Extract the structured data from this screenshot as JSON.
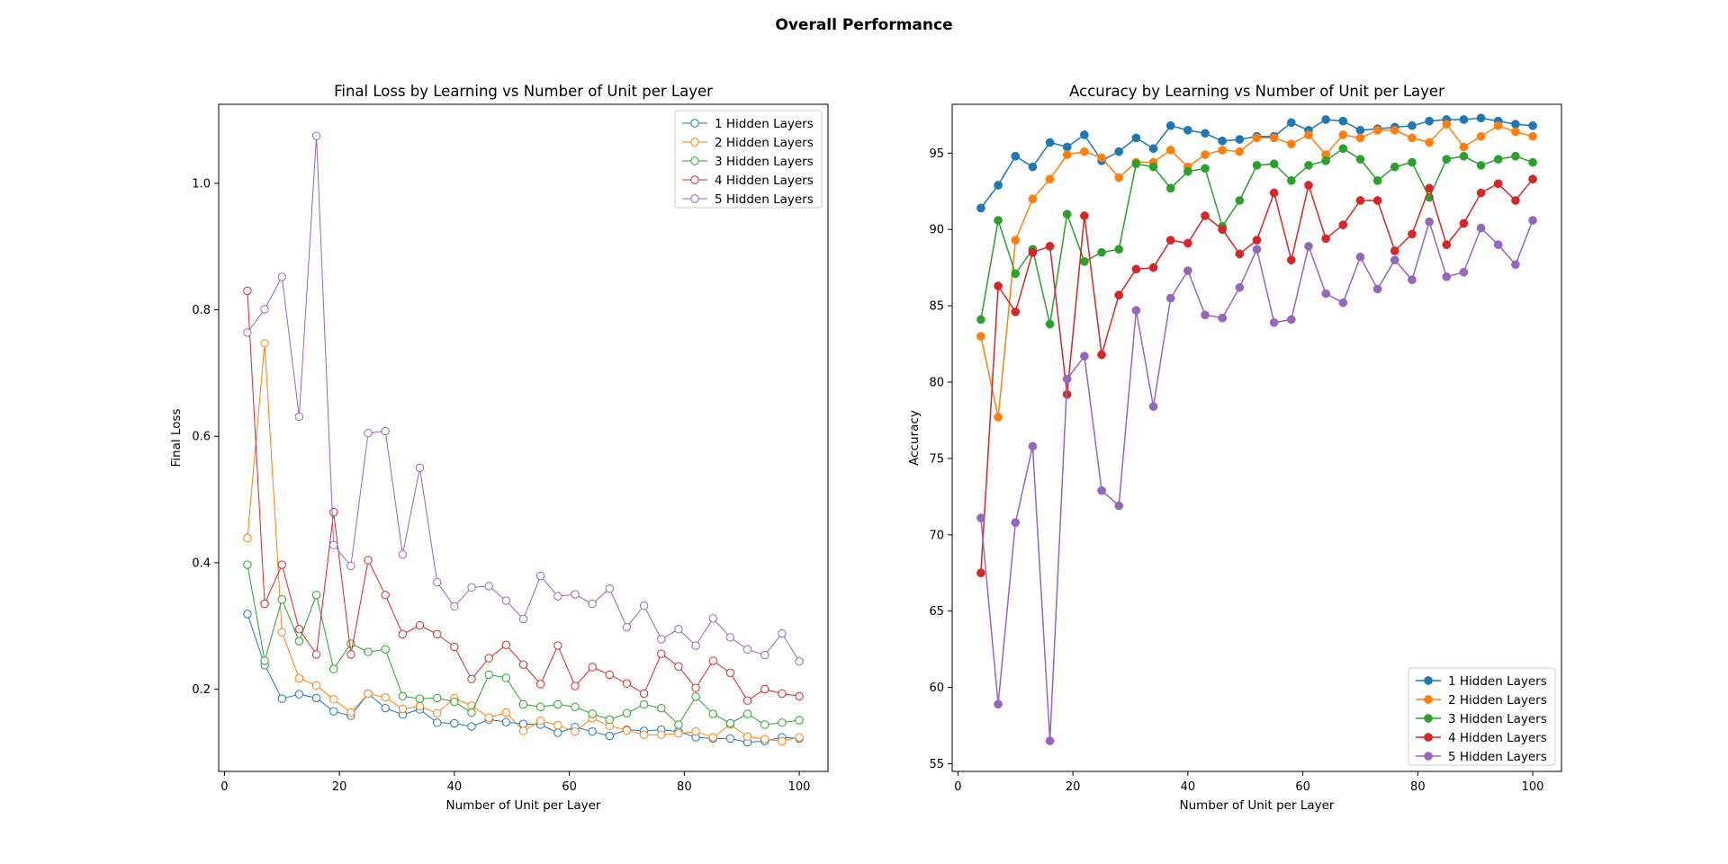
{
  "figure": {
    "title": "Overall Performance"
  },
  "chart_data": [
    {
      "type": "line",
      "title": "Final Loss by Learning vs Number of Unit per Layer",
      "xlabel": "Number of Unit per Layer",
      "ylabel": "Final Loss",
      "xlim": [
        -1,
        105
      ],
      "ylim": [
        0.07,
        1.125
      ],
      "xticks": [
        0,
        20,
        40,
        60,
        80,
        100
      ],
      "yticks": [
        0.2,
        0.4,
        0.6,
        0.8,
        1.0
      ],
      "ytick_format": 1,
      "marker": "hollow",
      "legend": "top-right",
      "grid": false,
      "x": [
        4,
        7,
        10,
        13,
        16,
        19,
        22,
        25,
        28,
        31,
        34,
        37,
        40,
        43,
        46,
        49,
        52,
        55,
        58,
        61,
        64,
        67,
        70,
        73,
        76,
        79,
        82,
        85,
        88,
        91,
        94,
        97,
        100
      ],
      "series": [
        {
          "name": "1 Hidden Layers",
          "color": "#1f77b4",
          "values": [
            0.319,
            0.238,
            0.185,
            0.192,
            0.186,
            0.165,
            0.158,
            0.193,
            0.17,
            0.16,
            0.168,
            0.147,
            0.146,
            0.141,
            0.152,
            0.148,
            0.145,
            0.144,
            0.131,
            0.14,
            0.133,
            0.126,
            0.136,
            0.134,
            0.136,
            0.133,
            0.124,
            0.122,
            0.122,
            0.116,
            0.118,
            0.124,
            0.122
          ]
        },
        {
          "name": "2 Hidden Layers",
          "color": "#ff7f0e",
          "values": [
            0.439,
            0.747,
            0.29,
            0.217,
            0.206,
            0.184,
            0.163,
            0.193,
            0.187,
            0.169,
            0.173,
            0.162,
            0.186,
            0.174,
            0.155,
            0.163,
            0.134,
            0.15,
            0.143,
            0.133,
            0.154,
            0.142,
            0.135,
            0.128,
            0.128,
            0.13,
            0.133,
            0.124,
            0.144,
            0.125,
            0.121,
            0.118,
            0.124
          ]
        },
        {
          "name": "3 Hidden Layers",
          "color": "#2ca02c",
          "values": [
            0.397,
            0.245,
            0.342,
            0.276,
            0.349,
            0.232,
            0.272,
            0.259,
            0.263,
            0.189,
            0.185,
            0.186,
            0.18,
            0.163,
            0.223,
            0.218,
            0.176,
            0.172,
            0.176,
            0.172,
            0.161,
            0.152,
            0.162,
            0.176,
            0.17,
            0.144,
            0.188,
            0.161,
            0.146,
            0.161,
            0.144,
            0.147,
            0.151
          ]
        },
        {
          "name": "4 Hidden Layers",
          "color": "#d62728",
          "values": [
            0.83,
            0.335,
            0.397,
            0.295,
            0.255,
            0.48,
            0.255,
            0.404,
            0.349,
            0.287,
            0.301,
            0.287,
            0.267,
            0.216,
            0.249,
            0.27,
            0.239,
            0.208,
            0.269,
            0.205,
            0.235,
            0.223,
            0.209,
            0.193,
            0.256,
            0.236,
            0.202,
            0.245,
            0.226,
            0.182,
            0.2,
            0.193,
            0.189
          ]
        },
        {
          "name": "5 Hidden Layers",
          "color": "#9467bd",
          "values": [
            0.764,
            0.801,
            0.852,
            0.631,
            1.075,
            0.428,
            0.395,
            0.605,
            0.608,
            0.413,
            0.55,
            0.369,
            0.331,
            0.361,
            0.363,
            0.34,
            0.311,
            0.379,
            0.347,
            0.35,
            0.335,
            0.359,
            0.298,
            0.332,
            0.279,
            0.295,
            0.269,
            0.312,
            0.282,
            0.263,
            0.254,
            0.288,
            0.244
          ]
        }
      ]
    },
    {
      "type": "line",
      "title": "Accuracy by Learning vs Number of Unit per Layer",
      "xlabel": "Number of Unit per Layer",
      "ylabel": "Accuracy",
      "xlim": [
        -1,
        105
      ],
      "ylim": [
        54.5,
        98.2
      ],
      "xticks": [
        0,
        20,
        40,
        60,
        80,
        100
      ],
      "yticks": [
        55,
        60,
        65,
        70,
        75,
        80,
        85,
        90,
        95
      ],
      "ytick_format": 0,
      "marker": "filled",
      "legend": "bottom-right",
      "grid": false,
      "x": [
        4,
        7,
        10,
        13,
        16,
        19,
        22,
        25,
        28,
        31,
        34,
        37,
        40,
        43,
        46,
        49,
        52,
        55,
        58,
        61,
        64,
        67,
        70,
        73,
        76,
        79,
        82,
        85,
        88,
        91,
        94,
        97,
        100
      ],
      "series": [
        {
          "name": "1 Hidden Layers",
          "color": "#1f77b4",
          "values": [
            91.4,
            92.9,
            94.8,
            94.1,
            95.7,
            95.4,
            96.2,
            94.5,
            95.1,
            96.0,
            95.3,
            96.8,
            96.5,
            96.3,
            95.8,
            95.9,
            96.1,
            96.1,
            97.0,
            96.5,
            97.2,
            97.1,
            96.5,
            96.6,
            96.7,
            96.8,
            97.1,
            97.2,
            97.2,
            97.3,
            97.1,
            96.9,
            96.8
          ]
        },
        {
          "name": "2 Hidden Layers",
          "color": "#ff7f0e",
          "values": [
            83.0,
            77.7,
            89.3,
            92.0,
            93.3,
            94.9,
            95.1,
            94.7,
            93.4,
            94.4,
            94.4,
            95.2,
            94.1,
            94.9,
            95.2,
            95.1,
            96.0,
            96.0,
            95.6,
            96.2,
            94.9,
            96.2,
            96.0,
            96.5,
            96.5,
            96.0,
            95.7,
            96.9,
            95.4,
            96.1,
            96.8,
            96.4,
            96.1
          ]
        },
        {
          "name": "3 Hidden Layers",
          "color": "#2ca02c",
          "values": [
            84.1,
            90.6,
            87.1,
            88.7,
            83.8,
            91.0,
            87.9,
            88.5,
            88.7,
            94.3,
            94.1,
            92.7,
            93.8,
            94.0,
            90.2,
            91.9,
            94.2,
            94.3,
            93.2,
            94.2,
            94.5,
            95.3,
            94.6,
            93.2,
            94.1,
            94.4,
            92.1,
            94.6,
            94.8,
            94.2,
            94.6,
            94.8,
            94.4
          ]
        },
        {
          "name": "4 Hidden Layers",
          "color": "#d62728",
          "values": [
            67.5,
            86.3,
            84.6,
            88.5,
            88.9,
            79.2,
            90.9,
            81.8,
            85.7,
            87.4,
            87.5,
            89.3,
            89.1,
            90.9,
            90.0,
            88.4,
            89.3,
            92.4,
            88.0,
            92.9,
            89.4,
            90.3,
            91.9,
            91.9,
            88.6,
            89.7,
            92.7,
            89.0,
            90.4,
            92.4,
            93.0,
            91.9,
            93.3
          ]
        },
        {
          "name": "5 Hidden Layers",
          "color": "#9467bd",
          "values": [
            71.1,
            58.9,
            70.8,
            75.8,
            56.5,
            80.2,
            81.7,
            72.9,
            71.9,
            84.7,
            78.4,
            85.5,
            87.3,
            84.4,
            84.2,
            86.2,
            88.7,
            83.9,
            84.1,
            88.9,
            85.8,
            85.2,
            88.2,
            86.1,
            88.0,
            86.7,
            90.5,
            86.9,
            87.2,
            90.1,
            89.0,
            87.7,
            90.6
          ]
        }
      ]
    }
  ]
}
